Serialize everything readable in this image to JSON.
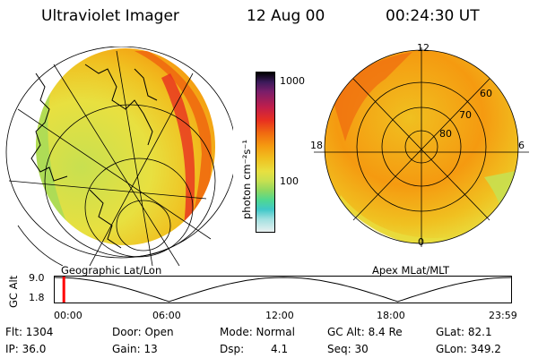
{
  "header": {
    "instrument": "Ultraviolet Imager",
    "date": "12 Aug 00",
    "time": "00:24:30 UT"
  },
  "colorbar": {
    "unit_label": "photon cm⁻²s⁻¹",
    "tick_labels": [
      "1000",
      "100"
    ],
    "colors": [
      "#000000",
      "#3b1a5a",
      "#7a1e6a",
      "#c21e4a",
      "#e83020",
      "#f06a10",
      "#f59a10",
      "#f0c020",
      "#e8e040",
      "#c8e050",
      "#90d860",
      "#50d890",
      "#40c8c8",
      "#a0e0e0",
      "#e8f0f0"
    ]
  },
  "left_panel": {
    "caption": "Geographic Lat/Lon"
  },
  "right_panel": {
    "caption": "Apex MLat/MLT",
    "mlt_labels": {
      "top": "12",
      "left": "18",
      "right": "6",
      "bottom": "0"
    },
    "lat_labels": [
      "60",
      "70",
      "80"
    ]
  },
  "altitude_plot": {
    "ylabel": "GC Alt",
    "y_ticks": [
      "9.0",
      "1.8"
    ],
    "x_ticks": [
      "00:00",
      "06:00",
      "12:00",
      "18:00",
      "23:59"
    ],
    "current_marker_fraction": 0.017
  },
  "status": {
    "flt": "Flt: 1304",
    "ip": "IP: 36.0",
    "door": "Door: Open",
    "gain": "Gain: 13",
    "mode": "Mode: Normal",
    "dsp_label": "Dsp:",
    "dsp_value": "4.1",
    "gc_alt": "GC Alt: 8.4 Re",
    "seq": "Seq: 30",
    "glat": "GLat: 82.1",
    "glon": "GLon: 349.2"
  },
  "colors": {
    "orbit_marker": "#ff0000",
    "grid": "#000000"
  }
}
